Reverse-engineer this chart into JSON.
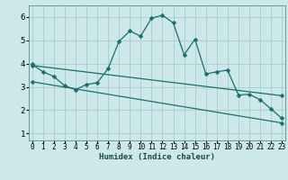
{
  "title": "",
  "xlabel": "Humidex (Indice chaleur)",
  "ylabel": "",
  "background_color": "#cce8e8",
  "grid_color": "#aacccc",
  "line_color": "#1a6e6e",
  "x_tick_labels": [
    "0",
    "1",
    "2",
    "3",
    "4",
    "5",
    "6",
    "7",
    "8",
    "9",
    "10",
    "11",
    "12",
    "13",
    "14",
    "15",
    "16",
    "17",
    "18",
    "19",
    "20",
    "21",
    "22",
    "23"
  ],
  "y_ticks": [
    1,
    2,
    3,
    4,
    5,
    6
  ],
  "xlim": [
    -0.3,
    23.3
  ],
  "ylim": [
    0.7,
    6.5
  ],
  "series1_x": [
    0,
    1,
    2,
    3,
    4,
    5,
    6,
    7,
    8,
    9,
    10,
    11,
    12,
    13,
    14,
    15,
    16,
    17,
    18,
    19,
    20,
    21,
    22,
    23
  ],
  "series1_y": [
    3.97,
    3.65,
    3.45,
    3.05,
    2.88,
    3.1,
    3.18,
    3.78,
    4.95,
    5.4,
    5.18,
    5.95,
    6.08,
    5.75,
    4.38,
    5.05,
    3.55,
    3.65,
    3.72,
    2.65,
    2.68,
    2.45,
    2.05,
    1.65
  ],
  "series2_x": [
    0,
    23
  ],
  "series2_y": [
    3.92,
    2.62
  ],
  "series3_x": [
    0,
    23
  ],
  "series3_y": [
    3.22,
    1.45
  ],
  "marker_size": 2.5,
  "line_width": 0.9,
  "xlabel_fontsize": 6.5,
  "xlabel_fontweight": "bold",
  "ytick_fontsize": 6.5,
  "xtick_fontsize": 5.5
}
